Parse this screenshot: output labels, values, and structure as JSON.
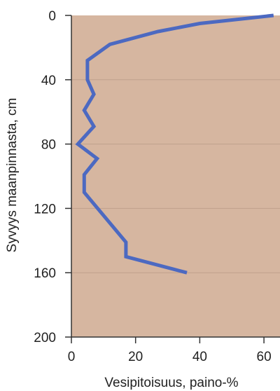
{
  "chart_data": {
    "type": "line",
    "title": "",
    "xlabel": "Vesipitoisuus, paino-%",
    "ylabel": "Syvyys maanpinnasta, cm",
    "xlim": [
      0,
      65
    ],
    "ylim": [
      0,
      200
    ],
    "y_inverted": true,
    "xticks": [
      0,
      20,
      40,
      60
    ],
    "yticks": [
      0,
      40,
      80,
      120,
      160,
      200
    ],
    "grid": "horizontal",
    "series": [
      {
        "name": "",
        "points": [
          {
            "x": 63,
            "y": 0
          },
          {
            "x": 40,
            "y": 5
          },
          {
            "x": 27,
            "y": 10
          },
          {
            "x": 12,
            "y": 18
          },
          {
            "x": 5,
            "y": 28
          },
          {
            "x": 5,
            "y": 40
          },
          {
            "x": 7,
            "y": 49
          },
          {
            "x": 4,
            "y": 59
          },
          {
            "x": 7,
            "y": 69
          },
          {
            "x": 2,
            "y": 80
          },
          {
            "x": 8,
            "y": 89
          },
          {
            "x": 4,
            "y": 99
          },
          {
            "x": 4,
            "y": 110
          },
          {
            "x": 17,
            "y": 141
          },
          {
            "x": 17,
            "y": 150
          },
          {
            "x": 36,
            "y": 160
          }
        ]
      }
    ],
    "colors": {
      "plot_background": "#d6b6a0",
      "line": "#4c69c1",
      "grid": "#bfa08c",
      "axis": "#333333"
    }
  }
}
